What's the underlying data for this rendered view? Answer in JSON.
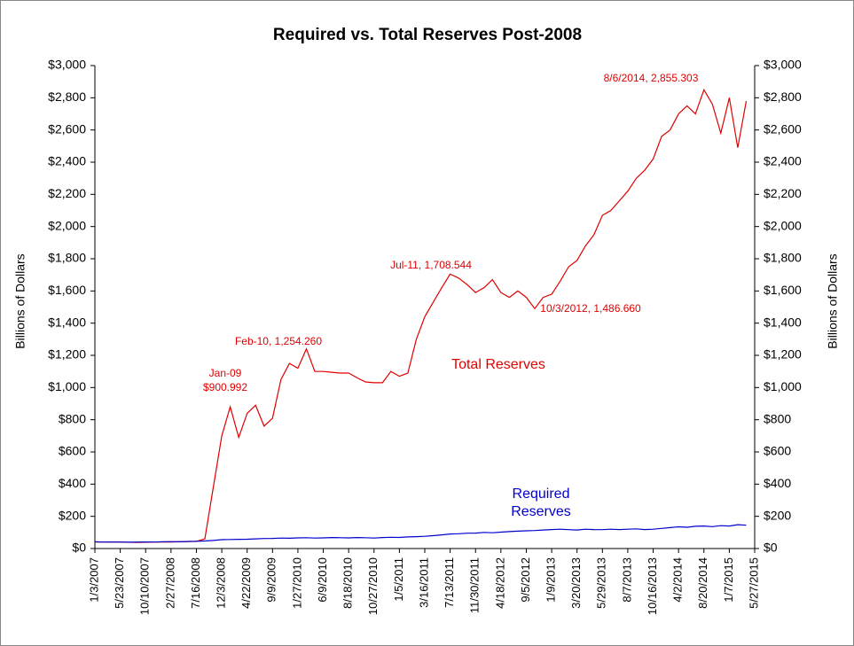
{
  "chart_data": {
    "type": "line",
    "title": "Required vs. Total Reserves Post-2008",
    "ylabel": "Billions of Dollars",
    "y2label": "Billions of Dollars",
    "categories": [
      "1/3/2007",
      null,
      null,
      "5/23/2007",
      null,
      null,
      "10/10/2007",
      null,
      null,
      "2/27/2008",
      null,
      null,
      "7/16/2008",
      null,
      null,
      "12/3/2008",
      null,
      null,
      "4/22/2009",
      null,
      null,
      "9/9/2009",
      null,
      null,
      "1/27/2010",
      null,
      null,
      "6/9/2010",
      null,
      null,
      "8/18/2010",
      null,
      null,
      "10/27/2010",
      null,
      null,
      "1/5/2011",
      null,
      null,
      "3/16/2011",
      null,
      null,
      "7/13/2011",
      null,
      null,
      "11/30/2011",
      null,
      null,
      "4/18/2012",
      null,
      null,
      "9/5/2012",
      null,
      null,
      "1/9/2013",
      null,
      null,
      "3/20/2013",
      null,
      null,
      "5/29/2013",
      null,
      null,
      "8/7/2013",
      null,
      null,
      "10/16/2013",
      null,
      null,
      "4/2/2014",
      null,
      null,
      "8/20/2014",
      null,
      null,
      "1/7/2015",
      null,
      null,
      "5/27/2015"
    ],
    "series": [
      {
        "name": "Total Reserves",
        "color": "#e00000",
        "values": [
          40,
          40,
          40,
          40,
          39,
          38,
          39,
          40,
          40,
          41,
          42,
          43,
          44,
          60,
          380,
          700,
          880,
          690,
          840,
          890,
          760,
          810,
          1050,
          1150,
          1120,
          1240,
          1100,
          1100,
          1095,
          1090,
          1090,
          1060,
          1035,
          1030,
          1030,
          1100,
          1070,
          1090,
          1300,
          1440,
          1530,
          1620,
          1705,
          1680,
          1640,
          1590,
          1620,
          1670,
          1590,
          1560,
          1600,
          1560,
          1490,
          1560,
          1580,
          1660,
          1750,
          1790,
          1880,
          1950,
          2070,
          2100,
          2160,
          2220,
          2300,
          2350,
          2420,
          2560,
          2600,
          2700,
          2750,
          2700,
          2850,
          2760,
          2580,
          2800,
          2490,
          2780,
          null
        ]
      },
      {
        "name": "Required Reserves",
        "color": "#0000cc",
        "values": [
          42,
          40,
          41,
          40,
          39,
          40,
          41,
          40,
          42,
          43,
          42,
          44,
          45,
          47,
          50,
          55,
          56,
          57,
          58,
          60,
          62,
          63,
          65,
          64,
          66,
          67,
          65,
          66,
          68,
          67,
          66,
          68,
          67,
          65,
          68,
          70,
          69,
          72,
          74,
          76,
          80,
          85,
          90,
          92,
          95,
          96,
          100,
          98,
          102,
          105,
          108,
          110,
          112,
          115,
          118,
          120,
          117,
          115,
          120,
          118,
          117,
          120,
          118,
          120,
          122,
          118,
          120,
          125,
          130,
          135,
          132,
          138,
          140,
          136,
          142,
          140,
          148,
          145,
          null
        ]
      }
    ],
    "annotations": [
      {
        "lines": [
          "Jan-09",
          "$900.992"
        ],
        "color": "#e00000"
      },
      {
        "lines": [
          "Feb-10, 1,254.260"
        ],
        "color": "#e00000"
      },
      {
        "lines": [
          "Jul-11, 1,708.544"
        ],
        "color": "#e00000"
      },
      {
        "lines": [
          "10/3/2012, 1,486.660"
        ],
        "color": "#e00000"
      },
      {
        "lines": [
          "8/6/2014, 2,855.303"
        ],
        "color": "#e00000"
      }
    ],
    "ylim": [
      0,
      3000
    ],
    "yticks": [
      {
        "value": 0,
        "label": "$0"
      },
      {
        "value": 200,
        "label": "$200"
      },
      {
        "value": 400,
        "label": "$400"
      },
      {
        "value": 600,
        "label": "$600"
      },
      {
        "value": 800,
        "label": "$800"
      },
      {
        "value": 1000,
        "label": "$1,000"
      },
      {
        "value": 1200,
        "label": "$1,200"
      },
      {
        "value": 1400,
        "label": "$1,400"
      },
      {
        "value": 1600,
        "label": "$1,600"
      },
      {
        "value": 1800,
        "label": "$1,800"
      },
      {
        "value": 2000,
        "label": "$2,000"
      },
      {
        "value": 2200,
        "label": "$2,200"
      },
      {
        "value": 2400,
        "label": "$2,400"
      },
      {
        "value": 2600,
        "label": "$2,600"
      },
      {
        "value": 2800,
        "label": "$2,800"
      },
      {
        "value": 3000,
        "label": "$3,000"
      }
    ],
    "y2lim": [
      0,
      3000
    ],
    "y2ticks": [
      {
        "value": 0,
        "label": "$0"
      },
      {
        "value": 200,
        "label": "$200"
      },
      {
        "value": 400,
        "label": "$400"
      },
      {
        "value": 600,
        "label": "$600"
      },
      {
        "value": 800,
        "label": "$800"
      },
      {
        "value": 1000,
        "label": "$1,000"
      },
      {
        "value": 1200,
        "label": "$1,200"
      },
      {
        "value": 1400,
        "label": "$1,400"
      },
      {
        "value": 1600,
        "label": "$1,600"
      },
      {
        "value": 1800,
        "label": "$1,800"
      },
      {
        "value": 2000,
        "label": "$2,000"
      },
      {
        "value": 2200,
        "label": "$2,200"
      },
      {
        "value": 2400,
        "label": "$2,400"
      },
      {
        "value": 2600,
        "label": "$2,600"
      },
      {
        "value": 2800,
        "label": "$2,800"
      },
      {
        "value": 3000,
        "label": "$3,000"
      }
    ],
    "grid": false
  }
}
